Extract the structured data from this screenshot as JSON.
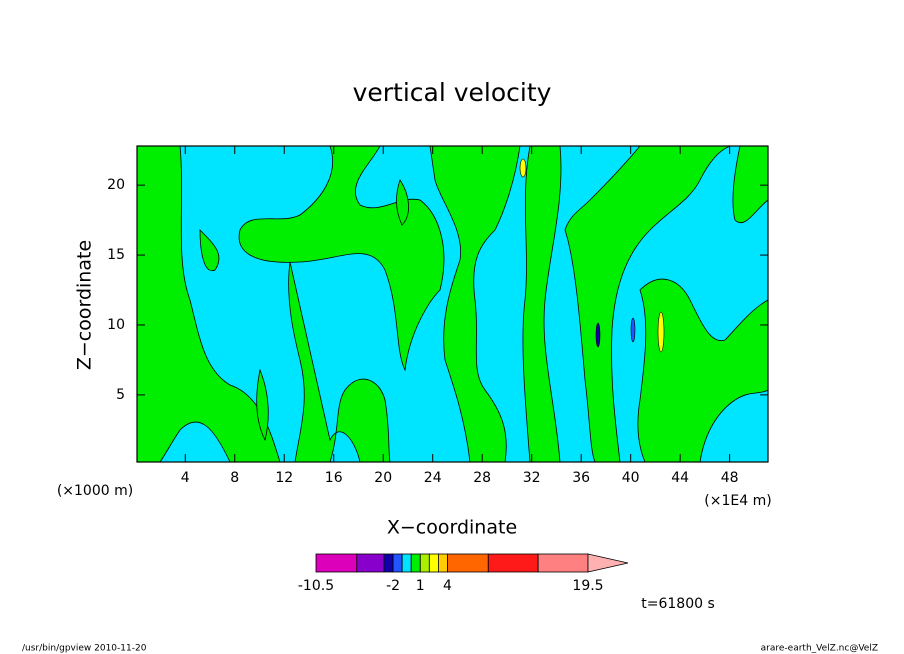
{
  "chart_data": {
    "type": "contour",
    "title": "vertical velocity",
    "x_label": "X−coordinate",
    "y_label": "Z−coordinate",
    "x_unit": "(×1E4 m)",
    "y_unit": "(×1000 m)",
    "time_label": "t=61800 s",
    "footer_left": "/usr/bin/gpview  2010-11-20",
    "footer_right": "arare-earth_VelZ.nc@VelZ",
    "xlim": [
      0.1,
      51.1
    ],
    "ylim": [
      0.2,
      22.8
    ],
    "xticks": [
      4,
      8,
      12,
      16,
      20,
      24,
      28,
      32,
      36,
      40,
      44,
      48
    ],
    "yticks": [
      5,
      10,
      15,
      20
    ],
    "colorbar": {
      "bounds": [
        -10.5,
        -6,
        -3,
        -2,
        -1,
        0,
        1,
        2,
        3,
        4,
        8.5,
        14,
        19.5
      ],
      "colors": [
        "#dd00bb",
        "#8800cc",
        "#1100aa",
        "#2255ff",
        "#00e5ff",
        "#00ee00",
        "#aaee00",
        "#ffff00",
        "#ffcc00",
        "#ff6600",
        "#ff1a1a",
        "#ff8080"
      ],
      "over_color": "#ffb0b0",
      "ticks": [
        -10.5,
        -2,
        1,
        4,
        19.5
      ]
    }
  }
}
